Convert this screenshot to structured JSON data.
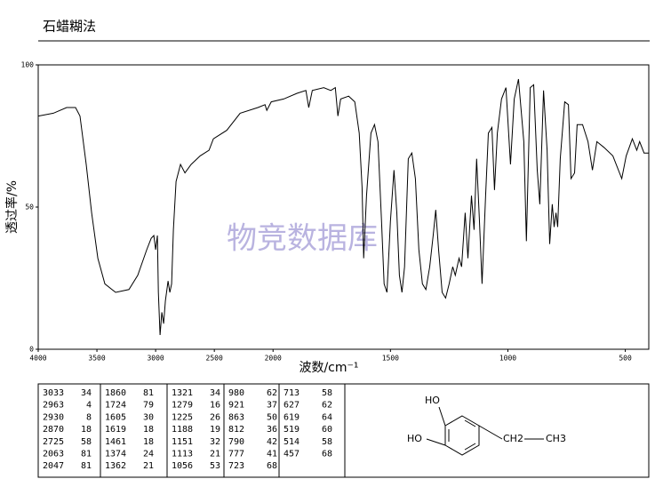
{
  "chart_data": {
    "type": "line",
    "title": "石蜡糊法",
    "xlabel": "波数/cm⁻¹",
    "ylabel": "透过率/%",
    "watermark": "物竞数据库",
    "xlim": [
      4000,
      400
    ],
    "x_scale_change": {
      "at": 2000,
      "factor": 2
    },
    "xticks": [
      4000,
      3500,
      3000,
      2500,
      2000,
      1500,
      1000,
      500
    ],
    "ylim": [
      0,
      100
    ],
    "yticks": [
      0,
      50,
      100
    ],
    "color": "#000000",
    "x": [
      4000,
      3871,
      3758,
      3682,
      3644,
      3591,
      3545,
      3492,
      3432,
      3341,
      3227,
      3152,
      3076,
      3038,
      3015,
      3000,
      2985,
      2977,
      2962,
      2947,
      2932,
      2917,
      2894,
      2879,
      2864,
      2849,
      2826,
      2788,
      2750,
      2697,
      2621,
      2545,
      2508,
      2394,
      2280,
      2129,
      2068,
      2053,
      2015,
      1955,
      1898,
      1860,
      1848,
      1833,
      1784,
      1754,
      1735,
      1724,
      1712,
      1678,
      1652,
      1633,
      1621,
      1614,
      1602,
      1583,
      1568,
      1553,
      1538,
      1527,
      1515,
      1500,
      1485,
      1473,
      1462,
      1451,
      1440,
      1424,
      1409,
      1394,
      1379,
      1364,
      1349,
      1333,
      1318,
      1307,
      1295,
      1280,
      1265,
      1250,
      1235,
      1224,
      1208,
      1197,
      1182,
      1170,
      1155,
      1144,
      1133,
      1121,
      1110,
      1095,
      1083,
      1068,
      1057,
      1045,
      1027,
      1008,
      989,
      973,
      955,
      932,
      921,
      905,
      890,
      875,
      864,
      848,
      833,
      822,
      811,
      803,
      795,
      788,
      777,
      758,
      742,
      731,
      716,
      705,
      682,
      659,
      640,
      621,
      591,
      553,
      515,
      496,
      470,
      451,
      439,
      420,
      401
    ],
    "values": [
      82,
      83,
      85,
      85,
      82,
      65,
      48,
      32,
      23,
      20,
      21,
      26,
      35,
      39,
      40,
      35,
      40,
      20,
      5,
      13,
      9,
      17,
      24,
      20,
      23,
      42,
      59,
      65,
      62,
      65,
      68,
      70,
      74,
      77,
      83,
      85,
      86,
      84,
      87,
      88,
      90,
      91,
      85,
      91,
      92,
      91,
      92,
      82,
      88,
      89,
      87,
      76,
      57,
      32,
      54,
      76,
      79,
      73,
      45,
      23,
      20,
      45,
      63,
      48,
      26,
      20,
      29,
      67,
      69,
      60,
      35,
      23,
      21,
      29,
      40,
      49,
      35,
      20,
      18,
      23,
      29,
      26,
      32,
      29,
      48,
      32,
      54,
      42,
      67,
      45,
      23,
      54,
      76,
      78,
      56,
      76,
      88,
      92,
      65,
      88,
      95,
      73,
      38,
      92,
      93,
      63,
      51,
      91,
      70,
      37,
      51,
      43,
      48,
      43,
      67,
      87,
      86,
      60,
      62,
      79,
      79,
      73,
      63,
      73,
      71,
      68,
      60,
      68,
      74,
      70,
      73,
      69,
      69
    ]
  },
  "peak_table": [
    [
      [
        3033,
        34
      ],
      [
        2963,
        4
      ],
      [
        2930,
        8
      ],
      [
        2870,
        18
      ],
      [
        2725,
        58
      ],
      [
        2063,
        81
      ],
      [
        2047,
        81
      ]
    ],
    [
      [
        1860,
        81
      ],
      [
        1724,
        79
      ],
      [
        1605,
        30
      ],
      [
        1619,
        18
      ],
      [
        1461,
        18
      ],
      [
        1374,
        24
      ],
      [
        1362,
        21
      ]
    ],
    [
      [
        1321,
        34
      ],
      [
        1279,
        16
      ],
      [
        1225,
        26
      ],
      [
        1188,
        19
      ],
      [
        1151,
        32
      ],
      [
        1113,
        21
      ],
      [
        1056,
        53
      ]
    ],
    [
      [
        980,
        62
      ],
      [
        921,
        37
      ],
      [
        863,
        50
      ],
      [
        812,
        36
      ],
      [
        790,
        42
      ],
      [
        777,
        41
      ],
      [
        723,
        68
      ]
    ],
    [
      [
        713,
        58
      ],
      [
        627,
        62
      ],
      [
        619,
        64
      ],
      [
        519,
        60
      ],
      [
        514,
        58
      ],
      [
        457,
        68
      ]
    ]
  ],
  "structure": {
    "labels": [
      "HO",
      "HO",
      "CH2",
      "CH3"
    ]
  }
}
